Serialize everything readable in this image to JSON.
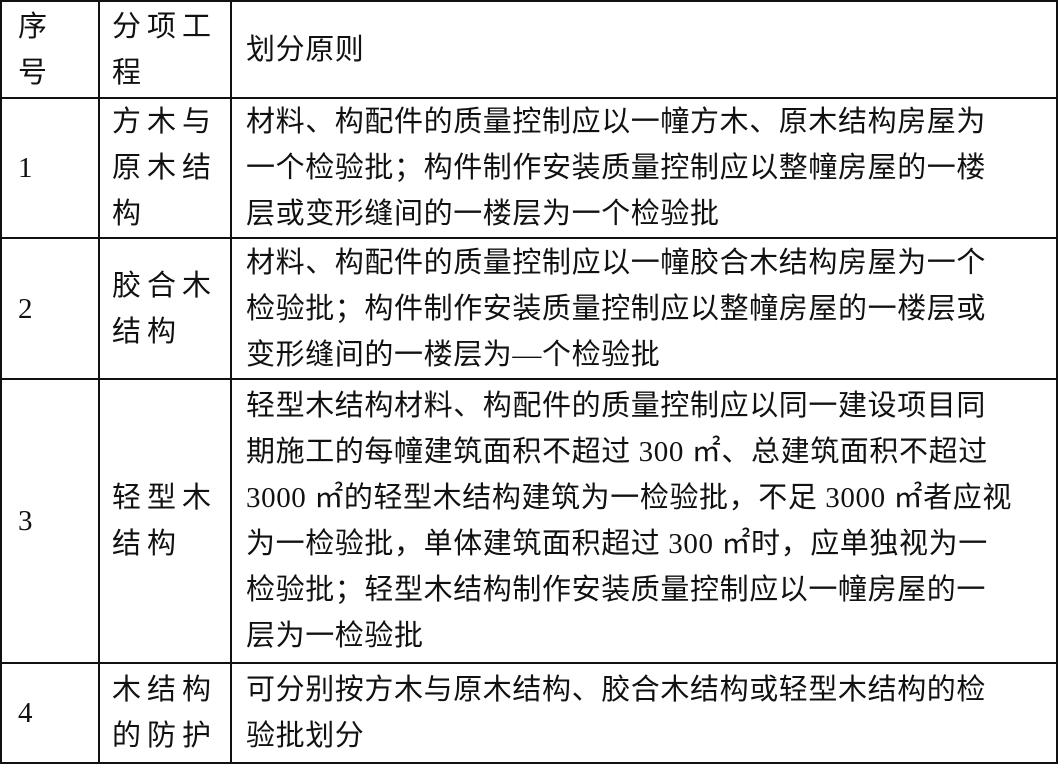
{
  "header": {
    "col_index": [
      "序",
      "号"
    ],
    "col_item": [
      "分项工",
      "程"
    ],
    "col_rule": [
      "划分原则"
    ]
  },
  "rows": [
    {
      "index": "1",
      "item": [
        "方木与",
        "原木结",
        "构"
      ],
      "rule": [
        "材料、构配件的质量控制应以一幢方木、原木结构房屋为",
        "一个检验批；构件制作安装质量控制应以整幢房屋的一楼",
        "层或变形缝间的一楼层为一个检验批"
      ]
    },
    {
      "index": "2",
      "item": [
        "胶合木",
        "结构"
      ],
      "rule": [
        "材料、构配件的质量控制应以一幢胶合木结构房屋为一个",
        "检验批；构件制作安装质量控制应以整幢房屋的一楼层或",
        "变形缝间的一楼层为—个检验批"
      ]
    },
    {
      "index": "3",
      "item": [
        "轻型木",
        "结构"
      ],
      "rule": [
        "轻型木结构材料、构配件的质量控制应以同一建设项目同",
        "期施工的每幢建筑面积不超过 300 ㎡、总建筑面积不超过",
        "3000 ㎡的轻型木结构建筑为一检验批，不足 3000 ㎡者应视",
        "为一检验批，单体建筑面积超过 300 ㎡时，应单独视为一",
        "检验批；轻型木结构制作安装质量控制应以一幢房屋的一",
        "层为一检验批"
      ]
    },
    {
      "index": "4",
      "item": [
        "木结构",
        "的防护"
      ],
      "rule": [
        "可分别按方木与原木结构、胶合木结构或轻型木结构的检",
        "验批划分"
      ]
    }
  ]
}
